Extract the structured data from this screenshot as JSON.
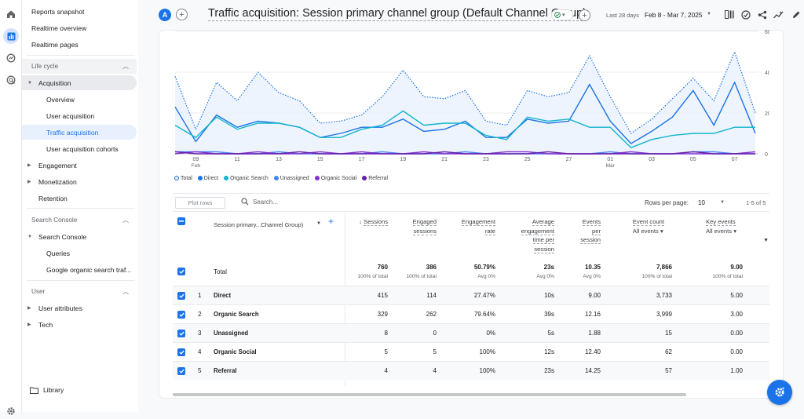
{
  "sidebar": {
    "top_items": [
      "Reports snapshot",
      "Realtime overview",
      "Realtime pages"
    ],
    "lifecycle_header": "Life cycle",
    "acquisition": "Acquisition",
    "acquisition_children": [
      "Overview",
      "User acquisition",
      "Traffic acquisition",
      "User acquisition cohorts"
    ],
    "engagement": "Engagement",
    "monetization": "Monetization",
    "retention": "Retention",
    "search_console_header": "Search Console",
    "search_console": "Search Console",
    "search_console_children": [
      "Queries",
      "Google organic search traf..."
    ],
    "user_header": "User",
    "user_attributes": "User attributes",
    "tech": "Tech",
    "library": "Library"
  },
  "topbar": {
    "avatar_letter": "A",
    "title": "Traffic acquisition: Session primary channel group (Default Channel Group)",
    "date_label": "Last 28 days",
    "date_range": "Feb 8 - Mar 7, 2025"
  },
  "legend": [
    "Total",
    "Direct",
    "Organic Search",
    "Unassigned",
    "Organic Social",
    "Referral"
  ],
  "chart_data": {
    "type": "line",
    "x_tick_labels": [
      "09",
      "11",
      "13",
      "15",
      "17",
      "19",
      "21",
      "23",
      "25",
      "27",
      "01",
      "03",
      "05",
      "07"
    ],
    "x_month_labels": [
      "Feb",
      "Mar"
    ],
    "y_ticks": [
      0,
      20,
      40,
      60
    ],
    "ylim": [
      0,
      60
    ],
    "series": [
      {
        "name": "Total",
        "color": "#1a73e8",
        "values": [
          38,
          12,
          35,
          26,
          40,
          30,
          26,
          15,
          16,
          19,
          28,
          41,
          28,
          27,
          31,
          16,
          14,
          31,
          28,
          30,
          48,
          28,
          10,
          17,
          27,
          37,
          26,
          50,
          20
        ]
      },
      {
        "name": "Direct",
        "color": "#1a73e8",
        "values": [
          23,
          6,
          19,
          13,
          16,
          15,
          13,
          8,
          10,
          13,
          13,
          17,
          11,
          12,
          16,
          8,
          8,
          17,
          15,
          16,
          34,
          16,
          5,
          11,
          18,
          31,
          14,
          35,
          10
        ]
      },
      {
        "name": "Organic Search",
        "color": "#12b5cb",
        "values": [
          14,
          8,
          18,
          12,
          15,
          15,
          13,
          8,
          8,
          12,
          14,
          21,
          14,
          15,
          15,
          9,
          7,
          18,
          16,
          17,
          13,
          13,
          3,
          7,
          9,
          10,
          10,
          13,
          13
        ]
      },
      {
        "name": "Unassigned",
        "color": "#4285f4",
        "values": [
          1,
          1,
          1,
          0,
          0,
          1,
          0,
          0,
          0,
          0,
          1,
          0,
          0,
          0,
          1,
          0,
          0,
          0,
          0,
          0,
          0,
          1,
          0,
          0,
          0,
          1,
          1,
          0,
          0
        ]
      },
      {
        "name": "Organic Social",
        "color": "#8430ce",
        "values": [
          0,
          1,
          0,
          0,
          1,
          0,
          0,
          1,
          0,
          1,
          0,
          0,
          1,
          0,
          0,
          0,
          1,
          1,
          0,
          0,
          0,
          0,
          1,
          0,
          0,
          0,
          0,
          0,
          1
        ]
      },
      {
        "name": "Referral",
        "color": "#681da8",
        "values": [
          1,
          0,
          0,
          0,
          0,
          0,
          1,
          0,
          0,
          0,
          0,
          0,
          0,
          1,
          0,
          0,
          0,
          0,
          1,
          0,
          0,
          0,
          0,
          0,
          0,
          1,
          0,
          0,
          0
        ]
      }
    ]
  },
  "table": {
    "plot_rows": "Plot rows",
    "search_placeholder": "Search...",
    "rows_per_page_label": "Rows per page:",
    "rows_per_page": "10",
    "range": "1-5 of 5",
    "dim_header": "Session primary...Channel Group)",
    "col_sessions": "Sessions",
    "col_engaged_1": "Engaged",
    "col_engaged_2": "sessions",
    "col_rate_1": "Engagement",
    "col_rate_2": "rate",
    "col_avg_1": "Average",
    "col_avg_2": "engagement",
    "col_avg_3": "time per",
    "col_avg_4": "session",
    "col_eps_1": "Events",
    "col_eps_2": "per",
    "col_eps_3": "session",
    "col_ec": "Event count",
    "col_ec_sub": "All events",
    "col_ke": "Key events",
    "col_ke_sub": "All events",
    "total_label": "Total",
    "totals": [
      "760",
      "386",
      "50.79%",
      "23s",
      "10.35",
      "7,866",
      "9.00"
    ],
    "totals_sub": [
      "100% of total",
      "100% of total",
      "Avg 0%",
      "Avg 0%",
      "Avg 0%",
      "100% of total",
      "100% of total"
    ],
    "rows": [
      {
        "idx": "1",
        "name": "Direct",
        "v": [
          "415",
          "114",
          "27.47%",
          "10s",
          "9.00",
          "3,733",
          "5.00"
        ]
      },
      {
        "idx": "2",
        "name": "Organic Search",
        "v": [
          "329",
          "262",
          "79.64%",
          "39s",
          "12.16",
          "3,999",
          "3.00"
        ]
      },
      {
        "idx": "3",
        "name": "Unassigned",
        "v": [
          "8",
          "0",
          "0%",
          "5s",
          "1.88",
          "15",
          "0.00"
        ]
      },
      {
        "idx": "4",
        "name": "Organic Social",
        "v": [
          "5",
          "5",
          "100%",
          "12s",
          "12.40",
          "62",
          "0.00"
        ]
      },
      {
        "idx": "5",
        "name": "Referral",
        "v": [
          "4",
          "4",
          "100%",
          "23s",
          "14.25",
          "57",
          "1.00"
        ]
      }
    ]
  }
}
